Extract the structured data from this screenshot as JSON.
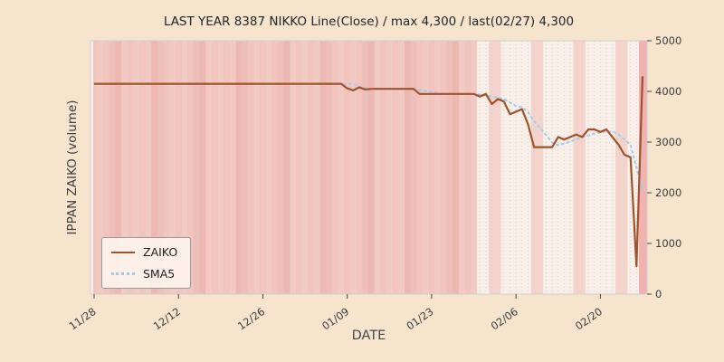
{
  "page": {
    "background_color": "#f6e4cd"
  },
  "chart_data": {
    "type": "line",
    "title": "LAST YEAR 8387 NIKKO Line(Close) / max 4,300 / last(02/27) 4,300",
    "xlabel": "DATE",
    "ylabel": "IPPAN ZAIKO (volume)",
    "ylim": [
      0,
      5000
    ],
    "y_ticks": [
      0,
      1000,
      2000,
      3000,
      4000,
      5000
    ],
    "x_unit": "days since 11/28",
    "x_range_days": [
      0,
      91
    ],
    "x_ticks": [
      {
        "day": 0,
        "label": "11/28"
      },
      {
        "day": 14,
        "label": "12/12"
      },
      {
        "day": 28,
        "label": "12/26"
      },
      {
        "day": 42,
        "label": "01/09"
      },
      {
        "day": 56,
        "label": "01/23"
      },
      {
        "day": 70,
        "label": "02/06"
      },
      {
        "day": 84,
        "label": "02/20"
      }
    ],
    "legend": {
      "position": "lower left",
      "entries": [
        "ZAIKO",
        "SMA5"
      ]
    },
    "series": [
      {
        "name": "ZAIKO",
        "style": "solid",
        "color": "#a0522d",
        "points": [
          [
            0,
            4150
          ],
          [
            41,
            4150
          ],
          [
            42,
            4060
          ],
          [
            43,
            4020
          ],
          [
            44,
            4080
          ],
          [
            45,
            4040
          ],
          [
            46,
            4050
          ],
          [
            53,
            4050
          ],
          [
            54,
            3950
          ],
          [
            63,
            3950
          ],
          [
            64,
            3900
          ],
          [
            65,
            3950
          ],
          [
            66,
            3750
          ],
          [
            67,
            3850
          ],
          [
            68,
            3800
          ],
          [
            69,
            3550
          ],
          [
            70,
            3600
          ],
          [
            71,
            3650
          ],
          [
            72,
            3350
          ],
          [
            73,
            2900
          ],
          [
            76,
            2900
          ],
          [
            77,
            3100
          ],
          [
            78,
            3050
          ],
          [
            79,
            3100
          ],
          [
            80,
            3150
          ],
          [
            81,
            3100
          ],
          [
            82,
            3250
          ],
          [
            83,
            3250
          ],
          [
            84,
            3200
          ],
          [
            85,
            3250
          ],
          [
            86,
            3100
          ],
          [
            87,
            2950
          ],
          [
            88,
            2750
          ],
          [
            89,
            2700
          ],
          [
            90,
            550
          ],
          [
            91,
            4300
          ]
        ]
      },
      {
        "name": "SMA5",
        "style": "dotted",
        "color": "#a3cbe8",
        "points": [
          [
            0,
            4150
          ],
          [
            43,
            4150
          ],
          [
            44,
            4090
          ],
          [
            45,
            4070
          ],
          [
            46,
            4050
          ],
          [
            53,
            4050
          ],
          [
            54,
            4030
          ],
          [
            55,
            4010
          ],
          [
            56,
            3990
          ],
          [
            57,
            3970
          ],
          [
            58,
            3950
          ],
          [
            63,
            3950
          ],
          [
            64,
            3940
          ],
          [
            66,
            3900
          ],
          [
            68,
            3850
          ],
          [
            69,
            3780
          ],
          [
            70,
            3710
          ],
          [
            71,
            3690
          ],
          [
            72,
            3590
          ],
          [
            73,
            3410
          ],
          [
            74,
            3280
          ],
          [
            75,
            3140
          ],
          [
            76,
            2990
          ],
          [
            77,
            2940
          ],
          [
            78,
            2970
          ],
          [
            79,
            3010
          ],
          [
            80,
            3060
          ],
          [
            81,
            3100
          ],
          [
            82,
            3130
          ],
          [
            83,
            3170
          ],
          [
            84,
            3190
          ],
          [
            85,
            3210
          ],
          [
            86,
            3210
          ],
          [
            87,
            3150
          ],
          [
            88,
            3050
          ],
          [
            89,
            2950
          ],
          [
            90,
            2500
          ],
          [
            91,
            2050
          ]
        ]
      }
    ],
    "background": {
      "plot_base_left": "#f1c4be",
      "plot_base_right": "#f8efe9",
      "weekend_band_left": "#edb8b1",
      "weekend_band_right": "#f3d4cd",
      "split_day": 63.5,
      "last_band_color": "#f1b2b2",
      "weekend_saturdays": [
        3,
        10,
        17,
        24,
        31,
        38,
        45,
        52,
        59,
        66,
        73,
        80,
        87
      ]
    }
  }
}
